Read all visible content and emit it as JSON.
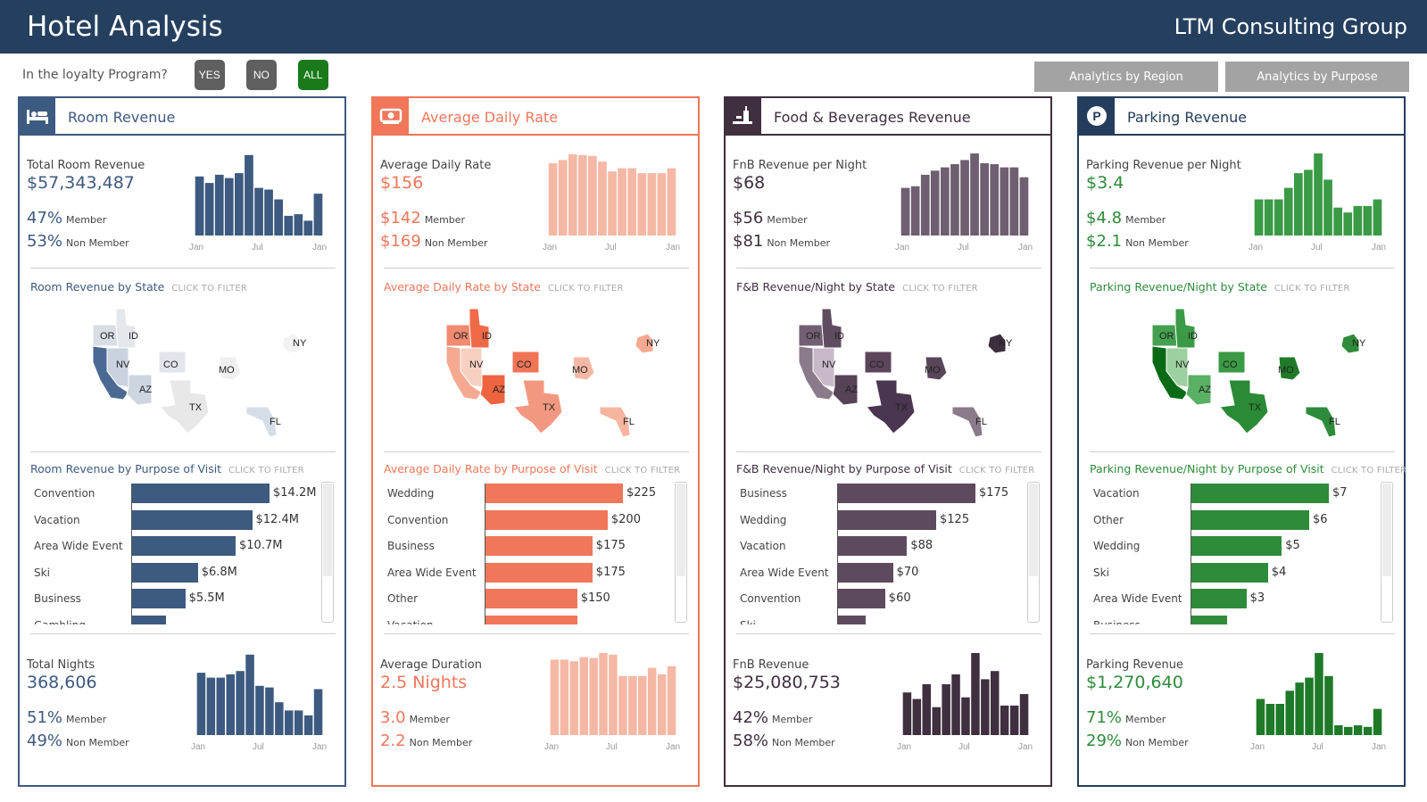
{
  "header": {
    "title": "Hotel Analysis",
    "company": "LTM Consulting Group"
  },
  "filter": {
    "label": "In the loyalty Program?",
    "yes": "YES",
    "no": "NO",
    "all": "ALL"
  },
  "nav": {
    "region": "Analytics by Region",
    "purpose": "Analytics by Purpose"
  },
  "axis": {
    "start": "Jan",
    "mid": "Jul",
    "end": "Jan"
  },
  "hint": "CLICK TO FILTER",
  "panels": [
    {
      "id": "room",
      "color": "#3d5a80",
      "light": "#3d5a80",
      "border": "#3d5a80",
      "title": "Room Revenue",
      "icon": "bed-icon",
      "kpi1": {
        "label": "Total Room Revenue",
        "value": "$57,343,487",
        "a": "47%",
        "a_label": "Member",
        "b": "53%",
        "b_label": "Non Member"
      },
      "bars1": [
        0.72,
        0.64,
        0.74,
        0.7,
        0.76,
        0.98,
        0.58,
        0.56,
        0.44,
        0.24,
        0.26,
        0.18,
        0.51
      ],
      "state_title": "Room Revenue by State",
      "purpose_title": "Room Revenue by Purpose of Visit",
      "purpose_max": 14.2,
      "purpose": [
        {
          "label": "Convention",
          "value": 14.2,
          "text": "$14.2M"
        },
        {
          "label": "Vacation",
          "value": 12.4,
          "text": "$12.4M"
        },
        {
          "label": "Area Wide Event",
          "value": 10.7,
          "text": "$10.7M"
        },
        {
          "label": "Ski",
          "value": 6.8,
          "text": "$6.8M"
        },
        {
          "label": "Business",
          "value": 5.5,
          "text": "$5.5M"
        },
        {
          "label": "Gambling",
          "value": 3.5,
          "text": ""
        }
      ],
      "kpi2": {
        "label": "Total Nights",
        "value": "368,606",
        "a": "51%",
        "a_label": "Member",
        "b": "49%",
        "b_label": "Non Member"
      },
      "bars2": [
        0.76,
        0.7,
        0.7,
        0.74,
        0.78,
        0.98,
        0.6,
        0.58,
        0.4,
        0.3,
        0.3,
        0.24,
        0.56
      ]
    },
    {
      "id": "adr",
      "color": "#f0775a",
      "light": "#f5b8a5",
      "border": "#f0775a",
      "title": "Average Daily Rate",
      "icon": "money-icon",
      "kpi1": {
        "label": "Average Daily Rate",
        "value": "$156",
        "a": "$142",
        "a_label": "Member",
        "b": "$169",
        "b_label": "Non Member"
      },
      "bars1": [
        0.88,
        0.92,
        0.99,
        0.98,
        0.97,
        0.9,
        0.78,
        0.82,
        0.82,
        0.76,
        0.76,
        0.76,
        0.82
      ],
      "state_title": "Average Daily Rate by State",
      "purpose_title": "Average Daily Rate by Purpose of Visit",
      "purpose_max": 225,
      "purpose": [
        {
          "label": "Wedding",
          "value": 225,
          "text": "$225"
        },
        {
          "label": "Convention",
          "value": 200,
          "text": "$200"
        },
        {
          "label": "Business",
          "value": 175,
          "text": "$175"
        },
        {
          "label": "Area Wide Event",
          "value": 175,
          "text": "$175"
        },
        {
          "label": "Other",
          "value": 150,
          "text": "$150"
        },
        {
          "label": "Vacation",
          "value": 150,
          "text": ""
        }
      ],
      "kpi2": {
        "label": "Average Duration",
        "value": "2.5 Nights",
        "a": "3.0",
        "a_label": "Member",
        "b": "2.2",
        "b_label": "Non Member"
      },
      "bars2": [
        0.92,
        0.92,
        0.9,
        0.95,
        0.94,
        1.0,
        0.98,
        0.72,
        0.72,
        0.72,
        0.82,
        0.74,
        0.84
      ]
    },
    {
      "id": "fnb",
      "color": "#5e4a5e",
      "light": "#6f5f70",
      "border": "#3f2f3f",
      "title": "Food & Beverages Revenue",
      "icon": "drink-icon",
      "kpi1": {
        "label": "FnB Revenue per Night",
        "value": "$68",
        "a": "$56",
        "a_label": "Member",
        "b": "$81",
        "b_label": "Non Member"
      },
      "bars1": [
        0.58,
        0.6,
        0.74,
        0.79,
        0.83,
        0.87,
        0.92,
        1.0,
        0.88,
        0.87,
        0.83,
        0.83,
        0.71
      ],
      "state_title": "F&B Revenue/Night by State",
      "purpose_title": "F&B Revenue/Night by Purpose of Visit",
      "purpose_max": 175,
      "purpose": [
        {
          "label": "Business",
          "value": 175,
          "text": "$175"
        },
        {
          "label": "Wedding",
          "value": 125,
          "text": "$125"
        },
        {
          "label": "Vacation",
          "value": 88,
          "text": "$88"
        },
        {
          "label": "Area Wide Event",
          "value": 70,
          "text": "$70"
        },
        {
          "label": "Convention",
          "value": 60,
          "text": "$60"
        },
        {
          "label": "Ski",
          "value": 35,
          "text": ""
        }
      ],
      "kpi2": {
        "label": "FnB Revenue",
        "value": "$25,080,753",
        "a": "42%",
        "a_label": "Member",
        "b": "58%",
        "b_label": "Non Member"
      },
      "bars2": [
        0.52,
        0.44,
        0.62,
        0.34,
        0.62,
        0.74,
        0.46,
        1.0,
        0.68,
        0.78,
        0.36,
        0.36,
        0.5
      ]
    },
    {
      "id": "parking",
      "color": "#2e8b3a",
      "light": "#3a9a45",
      "border": "#243d5c",
      "title": "Parking Revenue",
      "icon": "parking-icon",
      "kpi1": {
        "label": "Parking Revenue per Night",
        "value": "$3.4",
        "a": "$4.8",
        "a_label": "Member",
        "b": "$2.1",
        "b_label": "Non Member"
      },
      "bars1": [
        0.44,
        0.44,
        0.44,
        0.58,
        0.76,
        0.8,
        1.0,
        0.68,
        0.34,
        0.28,
        0.36,
        0.36,
        0.44
      ],
      "state_title": "Parking Revenue/Night by State",
      "purpose_title": "Parking Revenue/Night by Purpose of Visit",
      "purpose_max": 7,
      "purpose": [
        {
          "label": "Vacation",
          "value": 7,
          "text": "$7"
        },
        {
          "label": "Other",
          "value": 6,
          "text": "$6"
        },
        {
          "label": "Wedding",
          "value": 4.6,
          "text": "$5"
        },
        {
          "label": "Ski",
          "value": 3.9,
          "text": "$4"
        },
        {
          "label": "Area Wide Event",
          "value": 2.8,
          "text": "$3"
        },
        {
          "label": "Business",
          "value": 1.8,
          "text": ""
        }
      ],
      "kpi2": {
        "label": "Parking Revenue",
        "value": "$1,270,640",
        "a": "71%",
        "a_label": "Member",
        "b": "29%",
        "b_label": "Non Member"
      },
      "bars2": [
        0.44,
        0.38,
        0.38,
        0.54,
        0.64,
        0.7,
        1.0,
        0.72,
        0.12,
        0.1,
        0.12,
        0.1,
        0.32
      ]
    }
  ],
  "states": {
    "room": {
      "OR": "#d8dde6",
      "ID": "#e4e7ec",
      "NV": "#c9d2de",
      "CA": "#4a6a94",
      "AZ": "#ccd5e0",
      "CO": "#e2e6ec",
      "TX": "#e8e8e8",
      "MO": "#f0f0f0",
      "NY": "#f2f2f2",
      "FL": "#d5dde8"
    },
    "adr": {
      "OR": "#f08a70",
      "ID": "#f06a48",
      "NV": "#f8d0c2",
      "CA": "#f5a990",
      "AZ": "#ef6440",
      "CO": "#f07556",
      "TX": "#f39880",
      "MO": "#f6b8a6",
      "NY": "#f5a990",
      "FL": "#f7b5a0"
    },
    "fnb": {
      "OR": "#735f73",
      "ID": "#604c60",
      "NV": "#c8b8c8",
      "CA": "#8a7a8a",
      "AZ": "#574357",
      "CO": "#5c465c",
      "TX": "#4a3650",
      "MO": "#5a465a",
      "NY": "#3e2e3e",
      "FL": "#8a7a8a"
    },
    "parking": {
      "OR": "#44a050",
      "ID": "#3a9a45",
      "NV": "#9cd0a0",
      "CA": "#0b6a16",
      "AZ": "#5ab064",
      "CO": "#3a9a45",
      "TX": "#2b8a35",
      "MO": "#1e7a28",
      "NY": "#2e8b3a",
      "FL": "#2e8b3a"
    }
  },
  "state_labels": [
    "OR",
    "ID",
    "NV",
    "CO",
    "MO",
    "NY",
    "AZ",
    "TX",
    "FL"
  ]
}
